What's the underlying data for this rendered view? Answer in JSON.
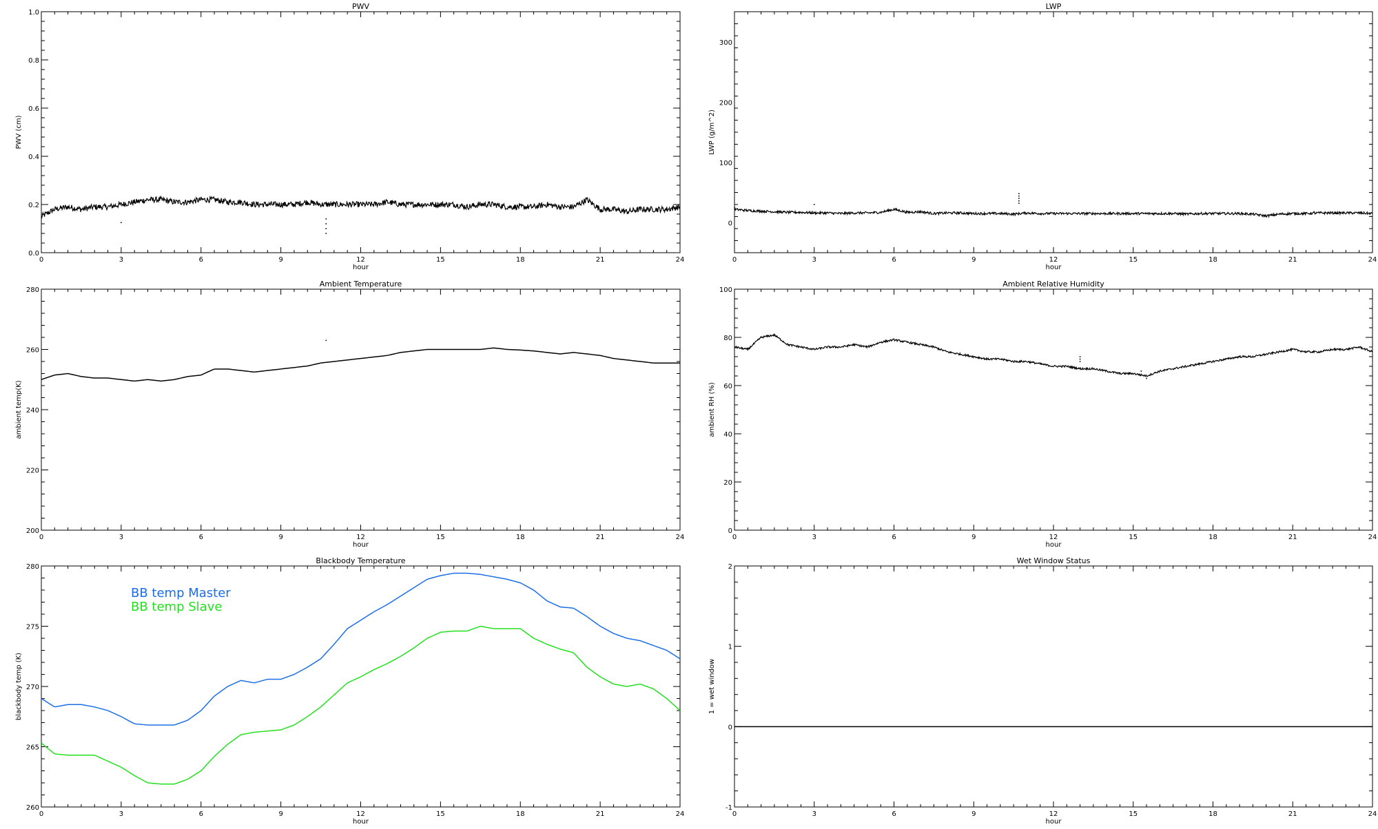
{
  "panels_title": "",
  "chart_data": [
    {
      "type": "line",
      "title": "PWV",
      "xlabel": "hour",
      "ylabel": "PWV (cm)",
      "xlim": [
        0,
        24
      ],
      "ylim": [
        0.0,
        1.0
      ],
      "xticks": [
        0,
        3,
        6,
        9,
        12,
        15,
        18,
        21,
        24
      ],
      "yticks": [
        0.0,
        0.2,
        0.4,
        0.6,
        0.8,
        1.0
      ],
      "ytick_labels": [
        "0.0",
        "0.2",
        "0.4",
        "0.6",
        "0.8",
        "1.0"
      ],
      "grid": false,
      "legend": null,
      "series": [
        {
          "color": "#000000",
          "noise": 0.012,
          "x": [
            0,
            0.5,
            1,
            1.5,
            2,
            2.5,
            3,
            3.5,
            4,
            4.5,
            5,
            5.5,
            6,
            6.5,
            7,
            7.5,
            8,
            8.5,
            9,
            9.5,
            10,
            10.5,
            11,
            11.5,
            12,
            12.5,
            13,
            13.5,
            14,
            14.5,
            15,
            15.5,
            16,
            16.5,
            17,
            17.5,
            18,
            18.5,
            19,
            19.5,
            20,
            20.5,
            21,
            21.5,
            22,
            22.5,
            23,
            23.5,
            24
          ],
          "y": [
            0.15,
            0.18,
            0.19,
            0.18,
            0.19,
            0.19,
            0.2,
            0.21,
            0.22,
            0.22,
            0.21,
            0.21,
            0.22,
            0.22,
            0.21,
            0.21,
            0.2,
            0.2,
            0.2,
            0.2,
            0.21,
            0.2,
            0.2,
            0.2,
            0.2,
            0.2,
            0.21,
            0.2,
            0.2,
            0.2,
            0.2,
            0.2,
            0.19,
            0.2,
            0.2,
            0.19,
            0.19,
            0.19,
            0.2,
            0.19,
            0.19,
            0.22,
            0.18,
            0.18,
            0.17,
            0.18,
            0.18,
            0.18,
            0.19
          ]
        }
      ],
      "outliers": [
        [
          3.0,
          0.125
        ],
        [
          10.7,
          0.14
        ],
        [
          10.7,
          0.12
        ],
        [
          10.7,
          0.1
        ],
        [
          10.7,
          0.08
        ]
      ]
    },
    {
      "type": "line",
      "title": "LWP",
      "xlabel": "hour",
      "ylabel": "LWP (g/m^2)",
      "xlim": [
        0,
        24
      ],
      "ylim": [
        -50,
        350
      ],
      "xticks": [
        0,
        3,
        6,
        9,
        12,
        15,
        18,
        21,
        24
      ],
      "yticks": [
        0,
        100,
        200,
        300
      ],
      "ytick_labels": [
        "0",
        "100",
        "200",
        "300"
      ],
      "grid": false,
      "legend": null,
      "series": [
        {
          "color": "#000000",
          "noise": 2.0,
          "x": [
            0,
            0.5,
            1,
            1.5,
            2,
            2.5,
            3,
            3.5,
            4,
            4.5,
            5,
            5.5,
            6,
            6.5,
            7,
            7.5,
            8,
            8.5,
            9,
            9.5,
            10,
            10.5,
            11,
            11.5,
            12,
            12.5,
            13,
            13.5,
            14,
            14.5,
            15,
            15.5,
            16,
            16.5,
            17,
            17.5,
            18,
            18.5,
            19,
            19.5,
            20,
            20.5,
            21,
            21.5,
            22,
            22.5,
            23,
            23.5,
            24
          ],
          "y": [
            22,
            20,
            19,
            18,
            17,
            17,
            16,
            16,
            15,
            16,
            16,
            17,
            22,
            17,
            18,
            15,
            16,
            16,
            15,
            15,
            15,
            14,
            16,
            15,
            15,
            15,
            15,
            15,
            15,
            15,
            15,
            15,
            15,
            15,
            14,
            15,
            15,
            15,
            15,
            14,
            11,
            14,
            15,
            15,
            16,
            16,
            16,
            16,
            15
          ]
        }
      ],
      "outliers": [
        [
          3.0,
          30
        ],
        [
          10.7,
          48
        ],
        [
          10.7,
          44
        ],
        [
          10.7,
          40
        ],
        [
          10.7,
          36
        ],
        [
          10.7,
          32
        ],
        [
          21.8,
          18
        ]
      ]
    },
    {
      "type": "line",
      "title": "Ambient Temperature",
      "xlabel": "hour",
      "ylabel": "ambient temp(K)",
      "xlim": [
        0,
        24
      ],
      "ylim": [
        200,
        280
      ],
      "xticks": [
        0,
        3,
        6,
        9,
        12,
        15,
        18,
        21,
        24
      ],
      "yticks": [
        200,
        220,
        240,
        260,
        280
      ],
      "ytick_labels": [
        "200",
        "220",
        "240",
        "260",
        "280"
      ],
      "grid": false,
      "legend": null,
      "series": [
        {
          "color": "#000000",
          "noise": 0,
          "x": [
            0,
            0.5,
            1,
            1.5,
            2,
            2.5,
            3,
            3.5,
            4,
            4.5,
            5,
            5.5,
            6,
            6.5,
            7,
            7.5,
            8,
            8.5,
            9,
            9.5,
            10,
            10.5,
            11,
            11.5,
            12,
            12.5,
            13,
            13.5,
            14,
            14.5,
            15,
            15.5,
            16,
            16.5,
            17,
            17.5,
            18,
            18.5,
            19,
            19.5,
            20,
            20.5,
            21,
            21.5,
            22,
            22.5,
            23,
            23.5,
            24
          ],
          "y": [
            250,
            251.5,
            252,
            251,
            250.5,
            250.5,
            250,
            249.5,
            250,
            249.5,
            250,
            251,
            251.5,
            253.5,
            253.5,
            253,
            252.5,
            253,
            253.5,
            254,
            254.5,
            255.5,
            256,
            256.5,
            257,
            257.5,
            258,
            259,
            259.5,
            260,
            260,
            260,
            260,
            260,
            260.5,
            260,
            259.8,
            259.5,
            259,
            258.5,
            259,
            258.5,
            258,
            257,
            256.5,
            256,
            255.5,
            255.5,
            255.5
          ]
        }
      ],
      "outliers": [
        [
          10.7,
          263
        ]
      ]
    },
    {
      "type": "line",
      "title": "Ambient Relative Humidity",
      "xlabel": "hour",
      "ylabel": "ambient RH (%)",
      "xlim": [
        0,
        24
      ],
      "ylim": [
        0,
        100
      ],
      "xticks": [
        0,
        3,
        6,
        9,
        12,
        15,
        18,
        21,
        24
      ],
      "yticks": [
        0,
        20,
        40,
        60,
        80,
        100
      ],
      "ytick_labels": [
        "0",
        "20",
        "40",
        "60",
        "80",
        "100"
      ],
      "grid": false,
      "legend": null,
      "series": [
        {
          "color": "#000000",
          "noise": 0.4,
          "x": [
            0,
            0.5,
            1,
            1.5,
            2,
            2.5,
            3,
            3.5,
            4,
            4.5,
            5,
            5.5,
            6,
            6.5,
            7,
            7.5,
            8,
            8.5,
            9,
            9.5,
            10,
            10.5,
            11,
            11.5,
            12,
            12.5,
            13,
            13.5,
            14,
            14.5,
            15,
            15.5,
            16,
            16.5,
            17,
            17.5,
            18,
            18.5,
            19,
            19.5,
            20,
            20.5,
            21,
            21.5,
            22,
            22.5,
            23,
            23.5,
            24
          ],
          "y": [
            76,
            75,
            80,
            81,
            77,
            76,
            75,
            76,
            76,
            77,
            76,
            78,
            79,
            78,
            77,
            76,
            74,
            73,
            72,
            71,
            71,
            70,
            70,
            69,
            68,
            68,
            67,
            67,
            66,
            65,
            65,
            64,
            66,
            67,
            68,
            69,
            70,
            71,
            72,
            72,
            73,
            74,
            75,
            74,
            74,
            75,
            75,
            76,
            74
          ]
        }
      ],
      "outliers": [
        [
          13.0,
          72
        ],
        [
          13.0,
          71
        ],
        [
          13.0,
          70
        ],
        [
          15.3,
          66
        ],
        [
          15.5,
          63
        ]
      ]
    },
    {
      "type": "line",
      "title": "Blackbody Temperature",
      "xlabel": "hour",
      "ylabel": "blackbody temp (K)",
      "xlim": [
        0,
        24
      ],
      "ylim": [
        260,
        280
      ],
      "xticks": [
        0,
        3,
        6,
        9,
        12,
        15,
        18,
        21,
        24
      ],
      "yticks": [
        260,
        265,
        270,
        275,
        280
      ],
      "ytick_labels": [
        "260",
        "265",
        "270",
        "275",
        "280"
      ],
      "grid": false,
      "legend": "top-left",
      "series": [
        {
          "name": "BB temp Master",
          "color": "#1a6ee8",
          "noise": 0,
          "x": [
            0,
            0.5,
            1,
            1.5,
            2,
            2.5,
            3,
            3.5,
            4,
            4.5,
            5,
            5.5,
            6,
            6.5,
            7,
            7.5,
            8,
            8.5,
            9,
            9.5,
            10,
            10.5,
            11,
            11.5,
            12,
            12.5,
            13,
            13.5,
            14,
            14.5,
            15,
            15.5,
            16,
            16.5,
            17,
            17.5,
            18,
            18.5,
            19,
            19.5,
            20,
            20.5,
            21,
            21.5,
            22,
            22.5,
            23,
            23.5,
            24
          ],
          "y": [
            269,
            268.3,
            268.5,
            268.5,
            268.3,
            268,
            267.5,
            266.9,
            266.8,
            266.8,
            266.8,
            267.2,
            268,
            269.2,
            270,
            270.5,
            270.3,
            270.6,
            270.6,
            271,
            271.6,
            272.3,
            273.5,
            274.8,
            275.5,
            276.2,
            276.8,
            277.5,
            278.2,
            278.9,
            279.2,
            279.4,
            279.4,
            279.3,
            279.1,
            278.9,
            278.6,
            278,
            277.1,
            276.6,
            276.5,
            275.8,
            275,
            274.4,
            274,
            273.8,
            273.4,
            273,
            272.3
          ]
        },
        {
          "name": "BB temp Slave",
          "color": "#22e01e",
          "noise": 0,
          "x": [
            0,
            0.5,
            1,
            1.5,
            2,
            2.5,
            3,
            3.5,
            4,
            4.5,
            5,
            5.5,
            6,
            6.5,
            7,
            7.5,
            8,
            8.5,
            9,
            9.5,
            10,
            10.5,
            11,
            11.5,
            12,
            12.5,
            13,
            13.5,
            14,
            14.5,
            15,
            15.5,
            16,
            16.5,
            17,
            17.5,
            18,
            18.5,
            19,
            19.5,
            20,
            20.5,
            21,
            21.5,
            22,
            22.5,
            23,
            23.5,
            24
          ],
          "y": [
            265.3,
            264.4,
            264.3,
            264.3,
            264.3,
            263.8,
            263.3,
            262.6,
            262,
            261.9,
            261.9,
            262.3,
            263,
            264.2,
            265.2,
            266,
            266.2,
            266.3,
            266.4,
            266.8,
            267.5,
            268.3,
            269.3,
            270.3,
            270.8,
            271.4,
            271.9,
            272.5,
            273.2,
            274,
            274.5,
            274.6,
            274.6,
            275,
            274.8,
            274.8,
            274.8,
            274,
            273.5,
            273.1,
            272.8,
            271.6,
            270.8,
            270.2,
            270,
            270.2,
            269.8,
            269,
            268
          ]
        }
      ],
      "outliers": []
    },
    {
      "type": "line",
      "title": "Wet Window Status",
      "xlabel": "hour",
      "ylabel": "1 = wet window",
      "xlim": [
        0,
        24
      ],
      "ylim": [
        -1,
        2
      ],
      "xticks": [
        0,
        3,
        6,
        9,
        12,
        15,
        18,
        21,
        24
      ],
      "yticks": [
        -1,
        0,
        1,
        2
      ],
      "ytick_labels": [
        "-1",
        "0",
        "1",
        "2"
      ],
      "grid": false,
      "legend": null,
      "series": [
        {
          "color": "#000000",
          "noise": 0,
          "x": [
            0,
            24
          ],
          "y": [
            0,
            0
          ]
        }
      ],
      "outliers": []
    }
  ]
}
